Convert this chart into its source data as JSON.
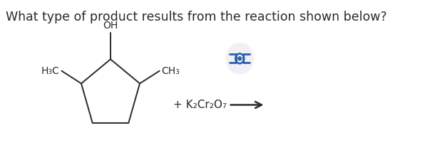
{
  "title": "What type of product results from the reaction shown below?",
  "title_fontsize": 12.5,
  "bg_color": "#ffffff",
  "text_color": "#2a2a2a",
  "molecule_color": "#2a2a2a",
  "reagent_text": "+ K₂Cr₂O₇",
  "oh_label": "OH",
  "h3c_label": "H₃C",
  "ch3_label": "CH₃",
  "arrow_color": "#2a2a2a",
  "icon_color": "#2b5fad",
  "icon_bg": "#f0f0f5"
}
